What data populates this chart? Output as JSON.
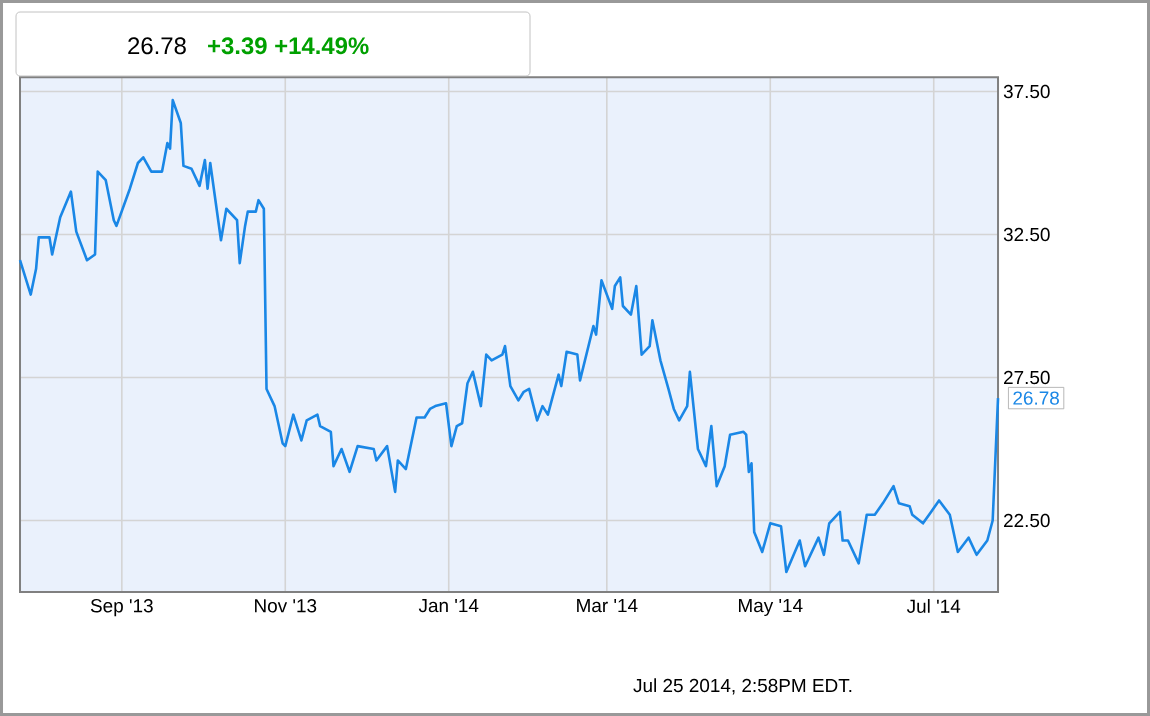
{
  "chart_data": {
    "type": "line",
    "title": "26.78",
    "subtitle": "+3.39  +14.49%",
    "x": [
      "2013-07-25",
      "2013-07-29",
      "2013-07-31",
      "2013-08-01",
      "2013-08-05",
      "2013-08-06",
      "2013-08-09",
      "2013-08-13",
      "2013-08-15",
      "2013-08-19",
      "2013-08-22",
      "2013-08-23",
      "2013-08-26",
      "2013-08-29",
      "2013-08-30",
      "2013-09-04",
      "2013-09-07",
      "2013-09-09",
      "2013-09-12",
      "2013-09-16",
      "2013-09-18",
      "2013-09-19",
      "2013-09-20",
      "2013-09-23",
      "2013-09-24",
      "2013-09-27",
      "2013-09-30",
      "2013-10-02",
      "2013-10-03",
      "2013-10-04",
      "2013-10-08",
      "2013-10-10",
      "2013-10-14",
      "2013-10-15",
      "2013-10-17",
      "2013-10-18",
      "2013-10-21",
      "2013-10-22",
      "2013-10-24",
      "2013-10-25",
      "2013-10-28",
      "2013-10-31",
      "2013-11-01",
      "2013-11-04",
      "2013-11-07",
      "2013-11-09",
      "2013-11-13",
      "2013-11-14",
      "2013-11-18",
      "2013-11-19",
      "2013-11-22",
      "2013-11-25",
      "2013-11-28",
      "2013-12-04",
      "2013-12-05",
      "2013-12-09",
      "2013-12-12",
      "2013-12-13",
      "2013-12-16",
      "2013-12-20",
      "2013-12-23",
      "2013-12-25",
      "2013-12-27",
      "2013-12-31",
      "2014-01-02",
      "2014-01-04",
      "2014-01-06",
      "2014-01-08",
      "2014-01-10",
      "2014-01-13",
      "2014-01-15",
      "2014-01-17",
      "2014-01-21",
      "2014-01-22",
      "2014-01-24",
      "2014-01-27",
      "2014-01-29",
      "2014-01-31",
      "2014-02-03",
      "2014-02-05",
      "2014-02-07",
      "2014-02-11",
      "2014-02-12",
      "2014-02-14",
      "2014-02-18",
      "2014-02-19",
      "2014-02-24",
      "2014-02-25",
      "2014-02-27",
      "2014-03-03",
      "2014-03-04",
      "2014-03-06",
      "2014-03-07",
      "2014-03-10",
      "2014-03-12",
      "2014-03-14",
      "2014-03-17",
      "2014-03-18",
      "2014-03-21",
      "2014-03-24",
      "2014-03-26",
      "2014-03-28",
      "2014-03-31",
      "2014-04-01",
      "2014-04-04",
      "2014-04-07",
      "2014-04-09",
      "2014-04-11",
      "2014-04-14",
      "2014-04-16",
      "2014-04-21",
      "2014-04-22",
      "2014-04-23",
      "2014-04-24",
      "2014-04-25",
      "2014-04-28",
      "2014-05-01",
      "2014-05-05",
      "2014-05-07",
      "2014-05-12",
      "2014-05-14",
      "2014-05-19",
      "2014-05-21",
      "2014-05-23",
      "2014-05-27",
      "2014-05-28",
      "2014-05-30",
      "2014-06-03",
      "2014-06-06",
      "2014-06-09",
      "2014-06-12",
      "2014-06-16",
      "2014-06-18",
      "2014-06-22",
      "2014-06-23",
      "2014-06-27",
      "2014-06-30",
      "2014-07-03",
      "2014-07-07",
      "2014-07-10",
      "2014-07-14",
      "2014-07-17",
      "2014-07-21",
      "2014-07-23",
      "2014-07-25"
    ],
    "series": [
      {
        "color": "#1a87e6",
        "values": [
          31.6,
          30.4,
          31.3,
          32.4,
          32.4,
          31.8,
          33.1,
          34.0,
          32.6,
          31.6,
          31.8,
          34.7,
          34.4,
          33.0,
          32.8,
          34.1,
          35.0,
          35.2,
          34.7,
          34.7,
          35.7,
          35.5,
          37.2,
          36.4,
          34.9,
          34.8,
          34.2,
          35.1,
          34.1,
          35.0,
          32.3,
          33.4,
          33.0,
          31.5,
          32.8,
          33.3,
          33.3,
          33.7,
          33.4,
          27.1,
          26.5,
          25.2,
          25.1,
          26.2,
          25.3,
          26.0,
          26.2,
          25.8,
          25.6,
          24.4,
          25.0,
          24.2,
          25.1,
          25.0,
          24.6,
          25.1,
          23.5,
          24.6,
          24.3,
          26.1,
          26.1,
          26.4,
          26.5,
          26.6,
          25.1,
          25.8,
          25.9,
          27.3,
          27.7,
          26.5,
          28.3,
          28.1,
          28.3,
          28.6,
          27.2,
          26.7,
          27.0,
          27.1,
          26.0,
          26.5,
          26.2,
          27.6,
          27.2,
          28.4,
          28.3,
          27.4,
          29.3,
          29.0,
          30.9,
          29.9,
          30.7,
          31.0,
          30.0,
          29.7,
          30.7,
          28.3,
          28.6,
          29.5,
          28.1,
          27.1,
          26.4,
          26.0,
          26.5,
          27.7,
          25.0,
          24.4,
          25.8,
          23.7,
          24.4,
          25.5,
          25.6,
          25.5,
          24.2,
          24.5,
          22.1,
          21.4,
          22.4,
          22.3,
          20.7,
          21.8,
          20.9,
          21.9,
          21.3,
          22.4,
          22.8,
          21.8,
          21.8,
          21.0,
          22.7,
          22.7,
          23.1,
          23.7,
          23.1,
          23.0,
          22.7,
          22.4,
          22.8,
          23.2,
          22.7,
          21.4,
          21.9,
          21.3,
          21.8,
          22.5,
          26.78
        ]
      }
    ],
    "xlim": [
      "2013-07-25",
      "2014-07-25"
    ],
    "xticks": [
      {
        "value": "2013-09-01",
        "label": "Sep '13"
      },
      {
        "value": "2013-11-01",
        "label": "Nov '13"
      },
      {
        "value": "2014-01-01",
        "label": "Jan '14"
      },
      {
        "value": "2014-03-01",
        "label": "Mar '14"
      },
      {
        "value": "2014-05-01",
        "label": "May '14"
      },
      {
        "value": "2014-07-01",
        "label": "Jul '14"
      }
    ],
    "ylim": [
      20,
      38
    ],
    "yticks": [
      {
        "value": 22.5,
        "label": "22.50"
      },
      {
        "value": 27.5,
        "label": "27.50"
      },
      {
        "value": 32.5,
        "label": "32.50"
      },
      {
        "value": 37.5,
        "label": "37.50"
      }
    ],
    "grid": true,
    "marker": "none",
    "line_style": "solid",
    "annotations": [
      {
        "text": "26.78",
        "x": "2014-07-25",
        "y": 26.78
      },
      "Jul 25 2014, 2:58PM EDT."
    ]
  }
}
